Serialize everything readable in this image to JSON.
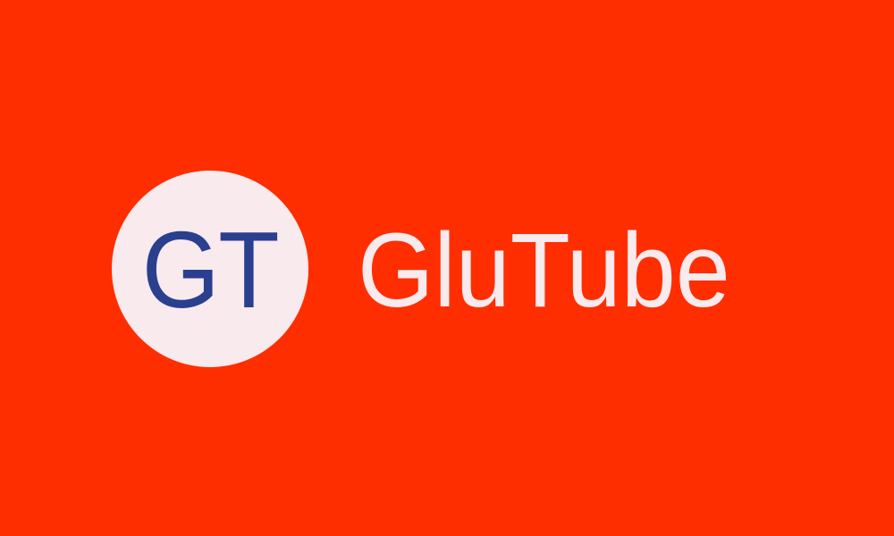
{
  "logo": {
    "initials": "GT",
    "name": "GluTube"
  },
  "colors": {
    "background": "#ff2e00",
    "circle": "#f8eaed",
    "initials": "#2a3f8e",
    "name": "#f8eaed"
  }
}
